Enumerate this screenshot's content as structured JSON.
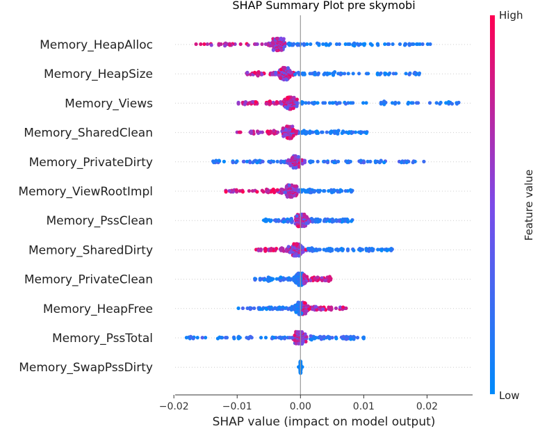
{
  "chart_data": {
    "type": "scatter",
    "subtype": "shap-summary-beeswarm",
    "title": "SHAP Summary Plot pre skymobi",
    "xlabel": "SHAP value (impact on model output)",
    "xlim": [
      -0.0198,
      0.0272
    ],
    "xticks": [
      -0.02,
      -0.01,
      0.0,
      0.01,
      0.02
    ],
    "xtick_labels": [
      "−0.02",
      "−0.01",
      "0.00",
      "0.01",
      "0.02"
    ],
    "colorbar": {
      "label": "Feature value",
      "high": "High",
      "low": "Low",
      "high_color": "#ff0052",
      "low_color": "#008bfb"
    },
    "features": [
      {
        "name": "Memory_HeapAlloc",
        "min": -0.0165,
        "max": 0.0205,
        "center": -0.0035,
        "high_side": "low"
      },
      {
        "name": "Memory_HeapSize",
        "min": -0.0085,
        "max": 0.0188,
        "center": -0.0025,
        "high_side": "low"
      },
      {
        "name": "Memory_Views",
        "min": -0.0098,
        "max": 0.025,
        "center": -0.0015,
        "high_side": "low"
      },
      {
        "name": "Memory_SharedClean",
        "min": -0.01,
        "max": 0.0105,
        "center": -0.0018,
        "high_side": "low"
      },
      {
        "name": "Memory_PrivateDirty",
        "min": -0.0138,
        "max": 0.0195,
        "center": -0.0008,
        "high_side": "mixed"
      },
      {
        "name": "Memory_ViewRootImpl",
        "min": -0.0118,
        "max": 0.0082,
        "center": -0.0015,
        "high_side": "low"
      },
      {
        "name": "Memory_PssClean",
        "min": -0.0058,
        "max": 0.0082,
        "center": 0.0002,
        "high_side": "mixed"
      },
      {
        "name": "Memory_SharedDirty",
        "min": -0.007,
        "max": 0.0145,
        "center": -0.0005,
        "high_side": "low"
      },
      {
        "name": "Memory_PrivateClean",
        "min": -0.0072,
        "max": 0.0048,
        "center": 0.0,
        "high_side": "high"
      },
      {
        "name": "Memory_HeapFree",
        "min": -0.0098,
        "max": 0.0072,
        "center": 0.0,
        "high_side": "high"
      },
      {
        "name": "Memory_PssTotal",
        "min": -0.018,
        "max": 0.01,
        "center": -0.0002,
        "high_side": "mixed"
      },
      {
        "name": "Memory_SwapPssDirty",
        "min": -0.0003,
        "max": 0.0003,
        "center": 0.0,
        "high_side": "none"
      }
    ]
  }
}
